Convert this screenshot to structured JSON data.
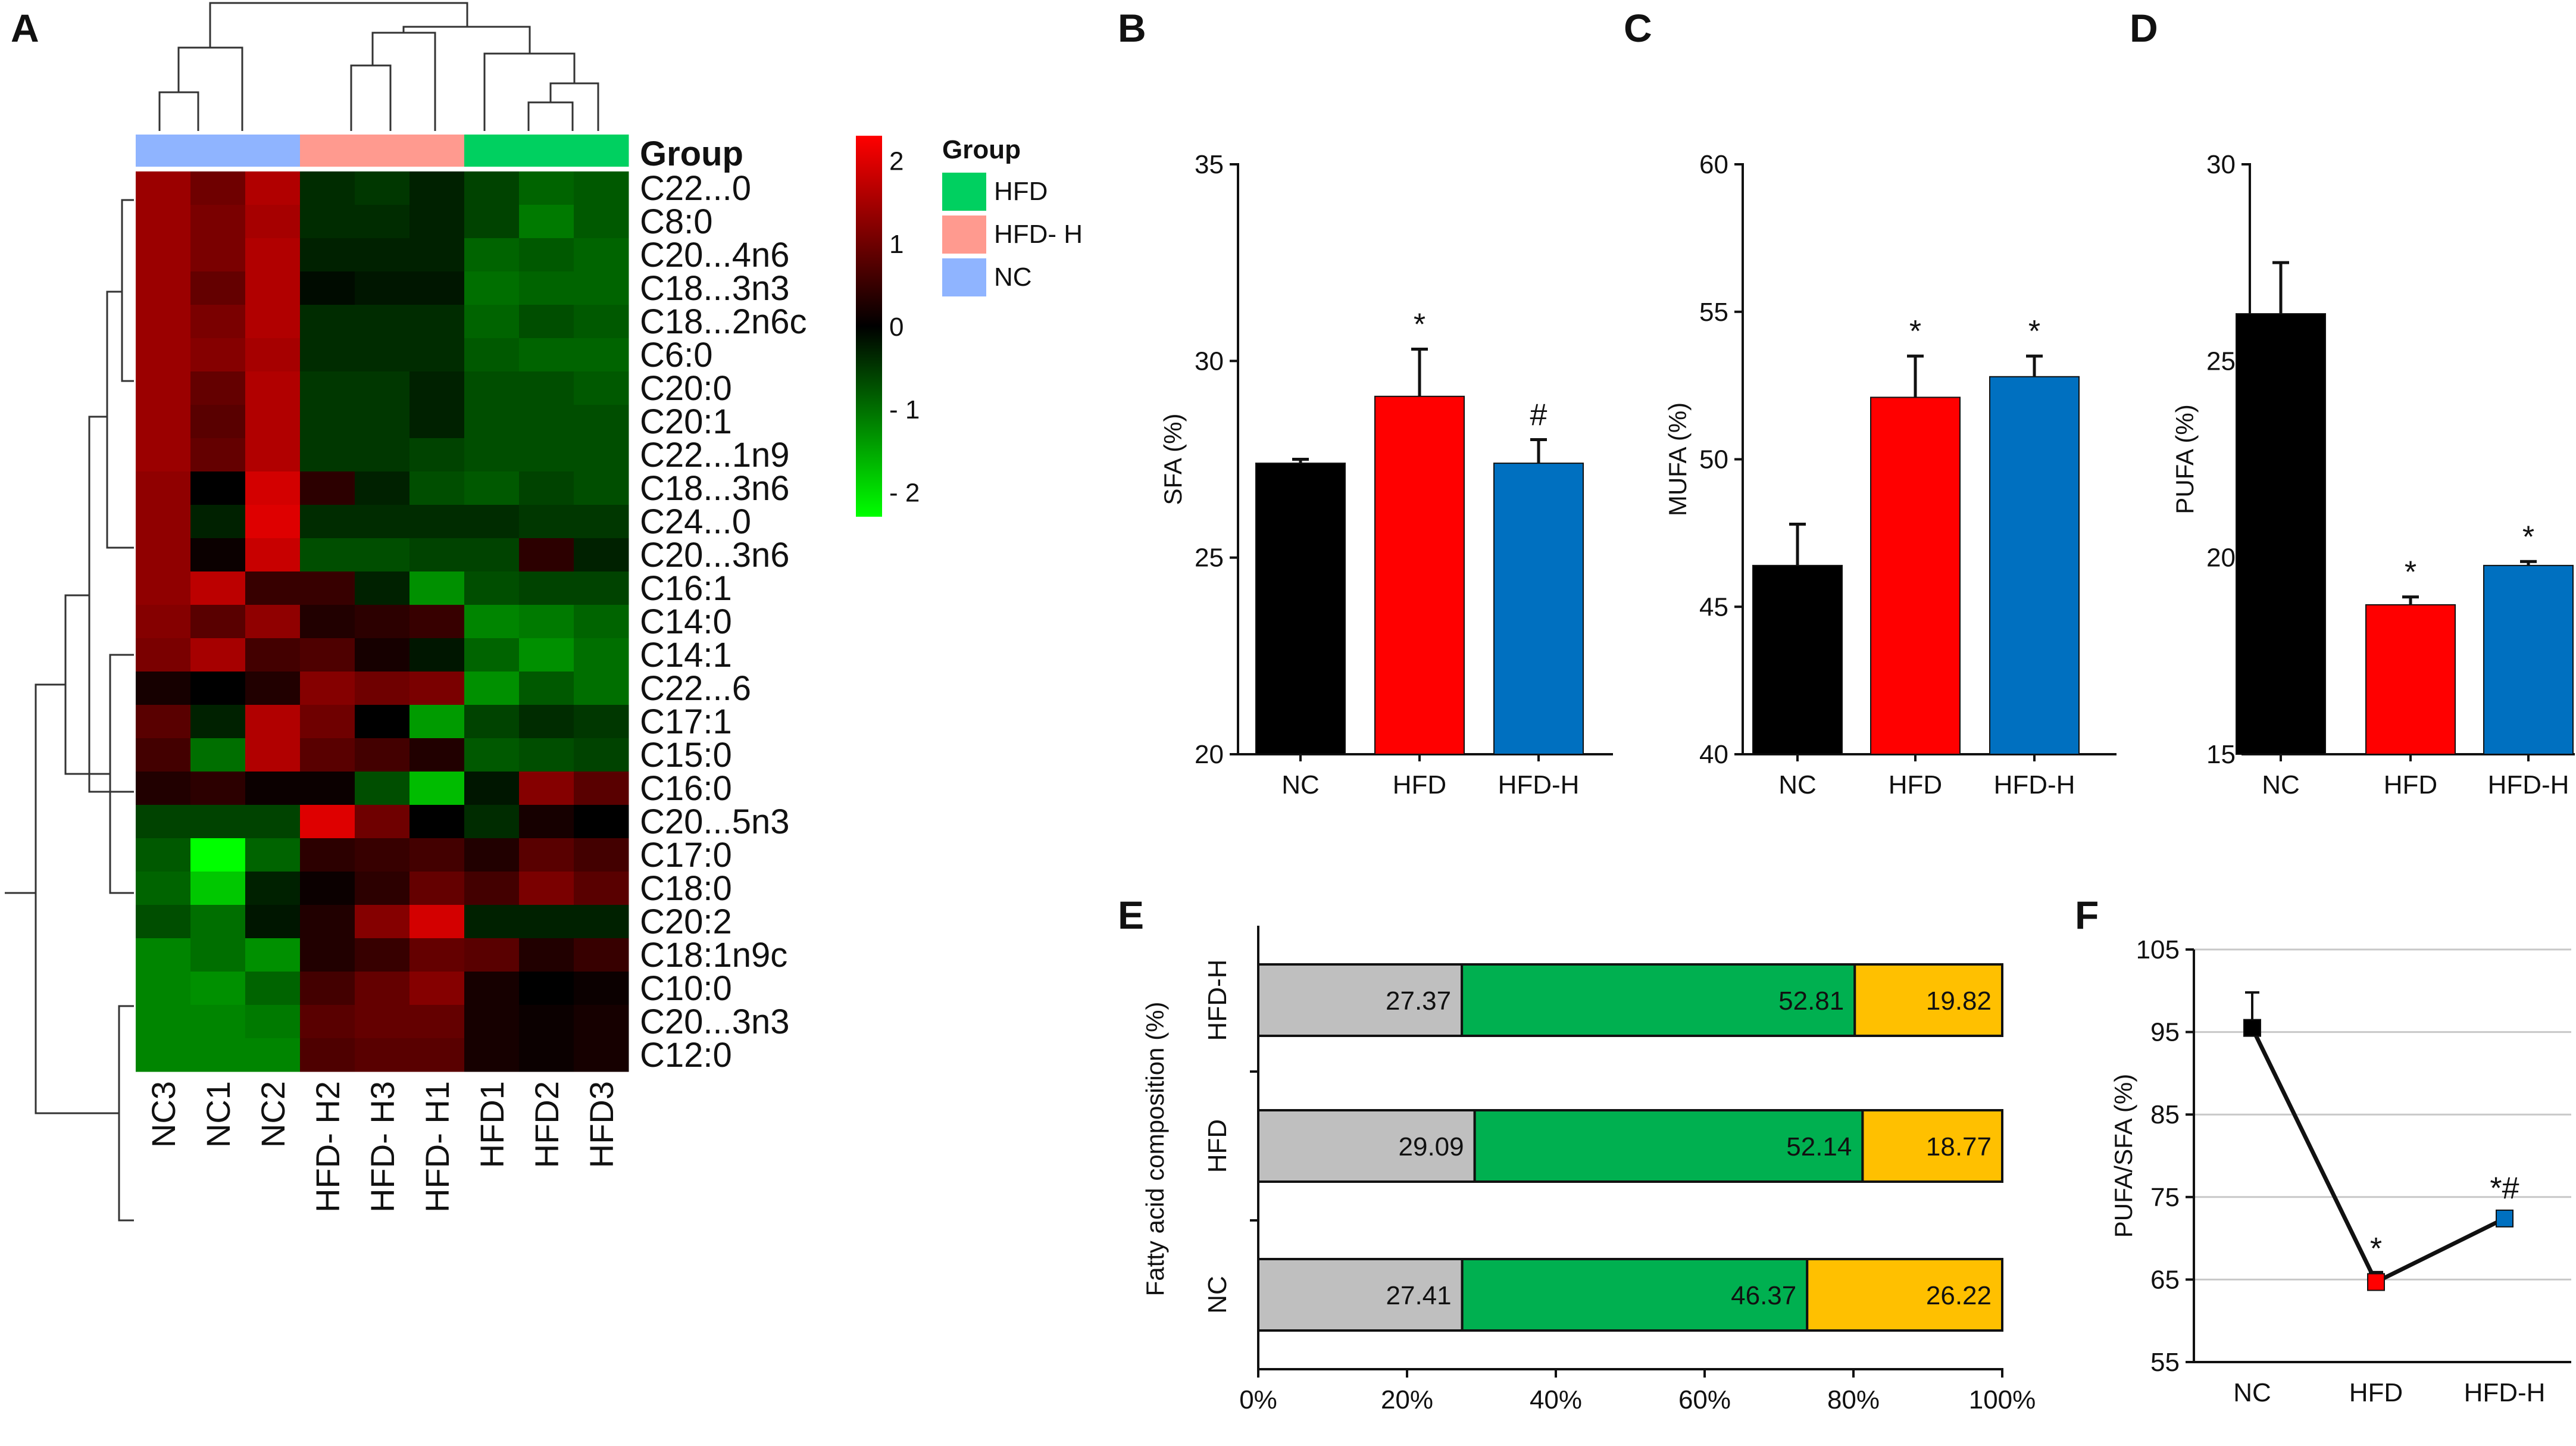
{
  "panel_labels": [
    "A",
    "B",
    "C",
    "D",
    "E",
    "F"
  ],
  "colors": {
    "NC": "#000000",
    "HFD": "#ff0000",
    "HFD_H": "#0070c0",
    "seg_SFA": "#bfbfbf",
    "seg_MUFA": "#00b050",
    "seg_PUFA": "#ffc000",
    "group_NC": "#8fb4ff",
    "group_HFD_H": "#ff9a8f",
    "group_HFD": "#00d060",
    "hm_high": "#ff0000",
    "hm_mid": "#000000",
    "hm_low": "#00ff00"
  },
  "chart_data": [
    {
      "id": "A",
      "type": "heatmap",
      "group_title": "Group",
      "group_bar_label": "Group",
      "legend_entries": [
        "HFD",
        "HFD- H",
        "NC"
      ],
      "colorbar_ticks": [
        "2",
        "1",
        "0",
        "- 1",
        "- 2"
      ],
      "colorbar_range": [
        -2.3,
        2.3
      ],
      "columns": [
        "NC3",
        "NC1",
        "NC2",
        "HFD- H2",
        "HFD- H3",
        "HFD- H1",
        "HFD1",
        "HFD2",
        "HFD3"
      ],
      "column_groups": [
        "NC",
        "NC",
        "NC",
        "HFD_H",
        "HFD_H",
        "HFD_H",
        "HFD",
        "HFD",
        "HFD"
      ],
      "rows": [
        "C22...0",
        "C8:0",
        "C20...4n6",
        "C18...3n3",
        "C18...2n6c",
        "C6:0",
        "C20:0",
        "C20:1",
        "C22...1n9",
        "C18...3n6",
        "C24...0",
        "C20...3n6",
        "C16:1",
        "C14:0",
        "C14:1",
        "C22...6",
        "C17:1",
        "C15:0",
        "C16:0",
        "C20...5n3",
        "C17:0",
        "C18:0",
        "C20:2",
        "C18:1n9c",
        "C10:0",
        "C20...3n3",
        "C12:0"
      ],
      "values": [
        [
          1.4,
          1.0,
          1.6,
          -0.4,
          -0.5,
          -0.3,
          -0.6,
          -0.9,
          -0.8
        ],
        [
          1.4,
          1.1,
          1.5,
          -0.4,
          -0.4,
          -0.3,
          -0.6,
          -1.1,
          -0.8
        ],
        [
          1.4,
          1.1,
          1.6,
          -0.3,
          -0.3,
          -0.3,
          -0.9,
          -0.8,
          -0.9
        ],
        [
          1.4,
          0.9,
          1.6,
          -0.1,
          -0.2,
          -0.2,
          -1.0,
          -0.9,
          -0.9
        ],
        [
          1.4,
          1.1,
          1.6,
          -0.4,
          -0.4,
          -0.4,
          -0.9,
          -0.7,
          -0.8
        ],
        [
          1.4,
          1.2,
          1.5,
          -0.4,
          -0.4,
          -0.4,
          -0.8,
          -0.9,
          -0.9
        ],
        [
          1.4,
          0.9,
          1.6,
          -0.5,
          -0.5,
          -0.3,
          -0.7,
          -0.7,
          -0.8
        ],
        [
          1.4,
          0.8,
          1.6,
          -0.5,
          -0.5,
          -0.3,
          -0.7,
          -0.7,
          -0.7
        ],
        [
          1.4,
          0.9,
          1.6,
          -0.5,
          -0.5,
          -0.6,
          -0.7,
          -0.7,
          -0.7
        ],
        [
          1.3,
          0.0,
          1.9,
          0.4,
          -0.3,
          -0.7,
          -0.8,
          -0.6,
          -0.7
        ],
        [
          1.3,
          -0.3,
          2.0,
          -0.4,
          -0.4,
          -0.4,
          -0.4,
          -0.5,
          -0.5
        ],
        [
          1.3,
          0.1,
          1.8,
          -0.7,
          -0.7,
          -0.6,
          -0.6,
          0.4,
          -0.3
        ],
        [
          1.3,
          1.7,
          0.5,
          0.5,
          -0.3,
          -1.3,
          -0.7,
          -0.6,
          -0.6
        ],
        [
          1.2,
          0.8,
          1.3,
          0.3,
          0.4,
          0.5,
          -1.2,
          -1.1,
          -0.9
        ],
        [
          1.1,
          1.5,
          0.6,
          0.7,
          0.2,
          -0.2,
          -0.9,
          -1.3,
          -1.0
        ],
        [
          0.2,
          0.0,
          0.3,
          1.2,
          1.0,
          1.1,
          -1.3,
          -0.8,
          -1.0
        ],
        [
          0.8,
          -0.3,
          1.6,
          1.0,
          0.0,
          -1.4,
          -0.6,
          -0.4,
          -0.5
        ],
        [
          0.6,
          -1.0,
          1.6,
          0.8,
          0.6,
          0.3,
          -0.8,
          -0.7,
          -0.6
        ],
        [
          0.3,
          0.4,
          0.1,
          0.1,
          -0.7,
          -1.7,
          -0.2,
          1.2,
          0.8
        ],
        [
          -0.6,
          -0.6,
          -0.6,
          2.0,
          1.0,
          0.0,
          -0.4,
          0.2,
          0.0
        ],
        [
          -0.8,
          -2.3,
          -0.9,
          0.4,
          0.5,
          0.6,
          0.3,
          0.8,
          0.6
        ],
        [
          -0.9,
          -1.8,
          -0.3,
          0.1,
          0.4,
          0.9,
          0.6,
          1.1,
          0.8
        ],
        [
          -0.7,
          -1.0,
          -0.2,
          0.3,
          1.2,
          1.9,
          -0.3,
          -0.3,
          -0.3
        ],
        [
          -1.2,
          -1.0,
          -1.3,
          0.3,
          0.5,
          0.9,
          0.8,
          0.3,
          0.5
        ],
        [
          -1.2,
          -1.3,
          -0.9,
          0.6,
          0.9,
          1.2,
          0.2,
          0.0,
          0.1
        ],
        [
          -1.2,
          -1.2,
          -1.1,
          0.8,
          0.9,
          0.9,
          0.2,
          0.1,
          0.2
        ],
        [
          -1.2,
          -1.2,
          -1.2,
          0.7,
          0.8,
          0.8,
          0.2,
          0.1,
          0.2
        ]
      ]
    },
    {
      "id": "B",
      "type": "bar",
      "ylabel": "SFA (%)",
      "ylim": [
        20,
        35
      ],
      "yticks": [
        "20",
        "25",
        "30",
        "35"
      ],
      "categories": [
        "NC",
        "HFD",
        "HFD-H"
      ],
      "values": [
        27.4,
        29.1,
        27.4
      ],
      "errors": [
        0.1,
        1.2,
        0.6
      ],
      "annotations": [
        "",
        "*",
        "#"
      ]
    },
    {
      "id": "C",
      "type": "bar",
      "ylabel": "MUFA (%)",
      "ylim": [
        40,
        60
      ],
      "yticks": [
        "40",
        "45",
        "50",
        "55",
        "60"
      ],
      "categories": [
        "NC",
        "HFD",
        "HFD-H"
      ],
      "values": [
        46.4,
        52.1,
        52.8
      ],
      "errors": [
        1.4,
        1.4,
        0.7
      ],
      "annotations": [
        "",
        "*",
        "*"
      ]
    },
    {
      "id": "D",
      "type": "bar",
      "ylabel": "PUFA (%)",
      "ylim": [
        15,
        30
      ],
      "yticks": [
        "15",
        "20",
        "25",
        "30"
      ],
      "categories": [
        "NC",
        "HFD",
        "HFD-H"
      ],
      "values": [
        26.2,
        18.8,
        19.8
      ],
      "errors": [
        1.3,
        0.2,
        0.1
      ],
      "annotations": [
        "",
        "*",
        "*"
      ]
    },
    {
      "id": "E",
      "type": "bar",
      "orientation": "horizontal-stacked",
      "ylabel": "Fatty acid composition (%)",
      "xticks": [
        "0%",
        "20%",
        "40%",
        "60%",
        "80%",
        "100%"
      ],
      "categories": [
        "HFD-H",
        "HFD",
        "NC"
      ],
      "series": [
        {
          "name": "SFA",
          "values": [
            27.37,
            29.09,
            27.41
          ],
          "labels": [
            "27.37",
            "29.09",
            "27.41"
          ]
        },
        {
          "name": "MUFA",
          "values": [
            52.81,
            52.14,
            46.37
          ],
          "labels": [
            "52.81",
            "52.14",
            "46.37"
          ]
        },
        {
          "name": "PUFA",
          "values": [
            19.82,
            18.77,
            26.22
          ],
          "labels": [
            "19.82",
            "18.77",
            "26.22"
          ]
        }
      ]
    },
    {
      "id": "F",
      "type": "line",
      "ylabel": "PUFA/SFA (%)",
      "ylim": [
        55,
        105
      ],
      "yticks": [
        "55",
        "65",
        "75",
        "85",
        "95",
        "105"
      ],
      "categories": [
        "NC",
        "HFD",
        "HFD-H"
      ],
      "values": [
        95.5,
        64.7,
        72.4
      ],
      "errors": [
        4.3,
        1.2,
        0.8
      ],
      "annotations": [
        "",
        "*",
        "*#"
      ]
    }
  ]
}
